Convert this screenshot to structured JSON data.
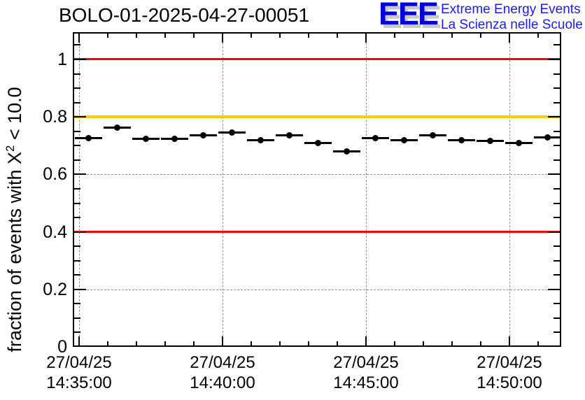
{
  "header": {
    "title": "BOLO-01-2025-04-27-00051"
  },
  "logo": {
    "acronym": "EEE",
    "line1": "Extreme Energy Events",
    "line2": "La Scienza nelle Scuole",
    "acronym_color": "#0000dd",
    "acronym_shadow_color": "#c8c8c8",
    "text_color": "#1a1aff"
  },
  "chart_data": {
    "type": "scatter",
    "title": "BOLO-01-2025-04-27-00051",
    "ylabel_parts": {
      "pre": "fraction of events with X",
      "sup": "2",
      "post": " < 10.0"
    },
    "xlabel": "",
    "ylim": [
      0,
      1.095
    ],
    "grid": "dashed-gray-on-major-ticks",
    "legend": "none",
    "y_axis": {
      "major_ticks": [
        {
          "v": 0.0,
          "label": "0"
        },
        {
          "v": 0.2,
          "label": "0.2"
        },
        {
          "v": 0.4,
          "label": "0.4"
        },
        {
          "v": 0.6,
          "label": "0.6"
        },
        {
          "v": 0.8,
          "label": "0.8"
        },
        {
          "v": 1.0,
          "label": "1"
        }
      ],
      "minor_tick_step": 0.05
    },
    "x_axis": {
      "unit": "seconds since 27/04/25 14:35:00",
      "range_s": [
        -13,
        1008
      ],
      "minor_tick_step_s": 60,
      "major_ticks": [
        {
          "s": 0,
          "date": "27/04/25",
          "time": "14:35:00"
        },
        {
          "s": 300,
          "date": "27/04/25",
          "time": "14:40:00"
        },
        {
          "s": 600,
          "date": "27/04/25",
          "time": "14:45:00"
        },
        {
          "s": 900,
          "date": "27/04/25",
          "time": "14:50:00"
        }
      ]
    },
    "reference_lines": [
      {
        "value": 1.0,
        "color": "#ff0000"
      },
      {
        "value": 0.8,
        "color": "#ffcc00"
      },
      {
        "value": 0.4,
        "color": "#ff0000"
      }
    ],
    "series": [
      {
        "name": "fraction of events with chi2 < 10",
        "marker": "filled-circle",
        "color": "#000000",
        "bin_width_s": 60,
        "points": [
          {
            "center_s": 20,
            "time": "14:35:20",
            "value": 0.727
          },
          {
            "center_s": 80,
            "time": "14:36:20",
            "value": 0.763
          },
          {
            "center_s": 140,
            "time": "14:37:20",
            "value": 0.723
          },
          {
            "center_s": 200,
            "time": "14:38:20",
            "value": 0.723
          },
          {
            "center_s": 260,
            "time": "14:39:20",
            "value": 0.737
          },
          {
            "center_s": 320,
            "time": "14:40:20",
            "value": 0.745
          },
          {
            "center_s": 380,
            "time": "14:41:20",
            "value": 0.719
          },
          {
            "center_s": 440,
            "time": "14:42:20",
            "value": 0.737
          },
          {
            "center_s": 500,
            "time": "14:43:20",
            "value": 0.71
          },
          {
            "center_s": 560,
            "time": "14:44:20",
            "value": 0.68
          },
          {
            "center_s": 620,
            "time": "14:45:20",
            "value": 0.727
          },
          {
            "center_s": 680,
            "time": "14:46:20",
            "value": 0.719
          },
          {
            "center_s": 740,
            "time": "14:47:20",
            "value": 0.737
          },
          {
            "center_s": 800,
            "time": "14:48:20",
            "value": 0.719
          },
          {
            "center_s": 860,
            "time": "14:49:20",
            "value": 0.717
          },
          {
            "center_s": 920,
            "time": "14:50:20",
            "value": 0.71
          },
          {
            "center_s": 980,
            "time": "14:51:20",
            "value": 0.729
          }
        ]
      }
    ]
  }
}
